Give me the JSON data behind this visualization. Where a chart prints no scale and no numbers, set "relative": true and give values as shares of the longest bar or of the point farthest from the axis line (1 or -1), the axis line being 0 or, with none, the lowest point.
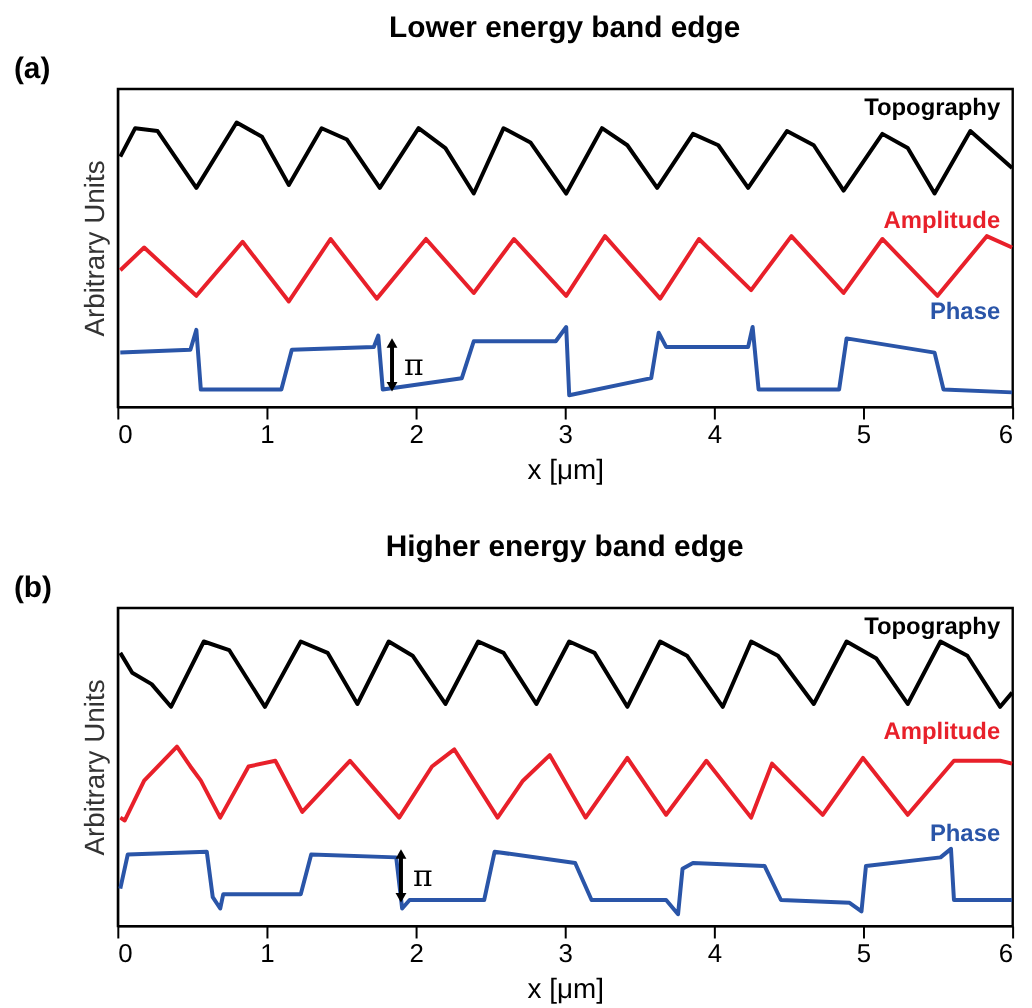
{
  "chart_data": [
    {
      "type": "line",
      "title": "Lower energy band edge",
      "xlabel": "x [μm]",
      "ylabel": "Arbitrary Units",
      "relative": true,
      "xlim": [
        0,
        6
      ],
      "xticks": [
        0,
        1,
        2,
        3,
        4,
        5,
        6
      ],
      "tick_labels": "x",
      "grid": false,
      "legend": false,
      "annotations": [
        "(a)",
        "π"
      ],
      "series": [
        {
          "name": "Topography",
          "color": "#000000",
          "x": [
            0.02,
            0.12,
            0.27,
            0.53,
            0.8,
            0.97,
            1.15,
            1.37,
            1.54,
            1.76,
            2.02,
            2.2,
            2.39,
            2.59,
            2.77,
            3.01,
            3.25,
            3.42,
            3.62,
            3.86,
            4.03,
            4.23,
            4.49,
            4.67,
            4.87,
            5.13,
            5.3,
            5.48,
            5.72,
            6.0
          ],
          "values": [
            0.88,
            0.98,
            0.97,
            0.77,
            1.0,
            0.95,
            0.78,
            0.98,
            0.94,
            0.77,
            0.98,
            0.91,
            0.75,
            0.98,
            0.93,
            0.75,
            0.98,
            0.92,
            0.77,
            0.96,
            0.92,
            0.77,
            0.97,
            0.92,
            0.76,
            0.96,
            0.91,
            0.75,
            0.97,
            0.84
          ]
        },
        {
          "name": "Amplitude",
          "color": "#e8202a",
          "x": [
            0.02,
            0.18,
            0.53,
            0.84,
            1.15,
            1.43,
            1.74,
            2.07,
            2.39,
            2.66,
            3.01,
            3.27,
            3.64,
            3.9,
            4.25,
            4.52,
            4.87,
            5.13,
            5.5,
            5.83,
            6.0
          ],
          "values": [
            0.48,
            0.56,
            0.39,
            0.58,
            0.37,
            0.59,
            0.38,
            0.59,
            0.4,
            0.59,
            0.39,
            0.6,
            0.38,
            0.59,
            0.41,
            0.6,
            0.4,
            0.59,
            0.39,
            0.6,
            0.56
          ]
        },
        {
          "name": "Phase",
          "color": "#2a55a8",
          "x": [
            0.02,
            0.49,
            0.53,
            0.56,
            1.1,
            1.17,
            1.72,
            1.75,
            1.78,
            2.31,
            2.39,
            2.94,
            3.01,
            3.03,
            3.58,
            3.63,
            3.68,
            4.23,
            4.26,
            4.3,
            4.84,
            4.89,
            5.48,
            5.54,
            6.0
          ],
          "values": [
            0.19,
            0.2,
            0.27,
            0.06,
            0.06,
            0.2,
            0.21,
            0.25,
            0.06,
            0.1,
            0.23,
            0.23,
            0.28,
            0.04,
            0.1,
            0.26,
            0.21,
            0.21,
            0.28,
            0.06,
            0.06,
            0.24,
            0.19,
            0.06,
            0.05
          ]
        }
      ]
    },
    {
      "type": "line",
      "title": "Higher energy band edge",
      "xlabel": "x [μm]",
      "ylabel": "Arbitrary Units",
      "relative": true,
      "xlim": [
        0,
        6
      ],
      "xticks": [
        0,
        1,
        2,
        3,
        4,
        5,
        6
      ],
      "tick_labels": "x",
      "grid": false,
      "legend": false,
      "annotations": [
        "(b)",
        "π"
      ],
      "series": [
        {
          "name": "Topography",
          "color": "#000000",
          "x": [
            0.02,
            0.1,
            0.23,
            0.36,
            0.58,
            0.75,
            0.99,
            1.23,
            1.41,
            1.61,
            1.82,
            1.98,
            2.2,
            2.42,
            2.59,
            2.81,
            3.03,
            3.2,
            3.42,
            3.64,
            3.82,
            4.06,
            4.25,
            4.43,
            4.67,
            4.89,
            5.09,
            5.3,
            5.52,
            5.7,
            5.92,
            6.0
          ],
          "values": [
            0.96,
            0.89,
            0.85,
            0.77,
            1.0,
            0.97,
            0.77,
            1.0,
            0.96,
            0.78,
            1.0,
            0.95,
            0.78,
            1.0,
            0.96,
            0.78,
            1.0,
            0.96,
            0.77,
            1.0,
            0.95,
            0.77,
            1.0,
            0.95,
            0.78,
            1.0,
            0.94,
            0.78,
            1.0,
            0.95,
            0.77,
            0.82
          ]
        },
        {
          "name": "Amplitude",
          "color": "#e8202a",
          "x": [
            0.02,
            0.05,
            0.18,
            0.4,
            0.49,
            0.56,
            0.69,
            0.88,
            1.06,
            1.24,
            1.56,
            1.89,
            2.11,
            2.26,
            2.55,
            2.72,
            2.9,
            3.14,
            3.42,
            3.68,
            3.95,
            4.25,
            4.39,
            4.73,
            5.0,
            5.3,
            5.61,
            5.92,
            6.0
          ],
          "values": [
            0.38,
            0.37,
            0.51,
            0.63,
            0.56,
            0.51,
            0.38,
            0.56,
            0.58,
            0.4,
            0.58,
            0.38,
            0.56,
            0.62,
            0.38,
            0.51,
            0.6,
            0.38,
            0.59,
            0.39,
            0.58,
            0.38,
            0.57,
            0.39,
            0.59,
            0.39,
            0.58,
            0.58,
            0.57
          ]
        },
        {
          "name": "Phase",
          "color": "#2a55a8",
          "x": [
            0.02,
            0.07,
            0.6,
            0.64,
            0.69,
            0.71,
            1.23,
            1.3,
            1.87,
            1.91,
            1.96,
            2.46,
            2.53,
            3.07,
            3.18,
            3.68,
            3.76,
            3.79,
            3.86,
            4.34,
            4.45,
            4.91,
            4.99,
            5.02,
            5.52,
            5.59,
            5.61,
            6.0
          ],
          "values": [
            0.13,
            0.25,
            0.26,
            0.1,
            0.06,
            0.11,
            0.11,
            0.25,
            0.24,
            0.06,
            0.09,
            0.09,
            0.26,
            0.22,
            0.09,
            0.09,
            0.04,
            0.2,
            0.22,
            0.21,
            0.09,
            0.08,
            0.05,
            0.21,
            0.24,
            0.27,
            0.09,
            0.09
          ]
        }
      ]
    }
  ]
}
